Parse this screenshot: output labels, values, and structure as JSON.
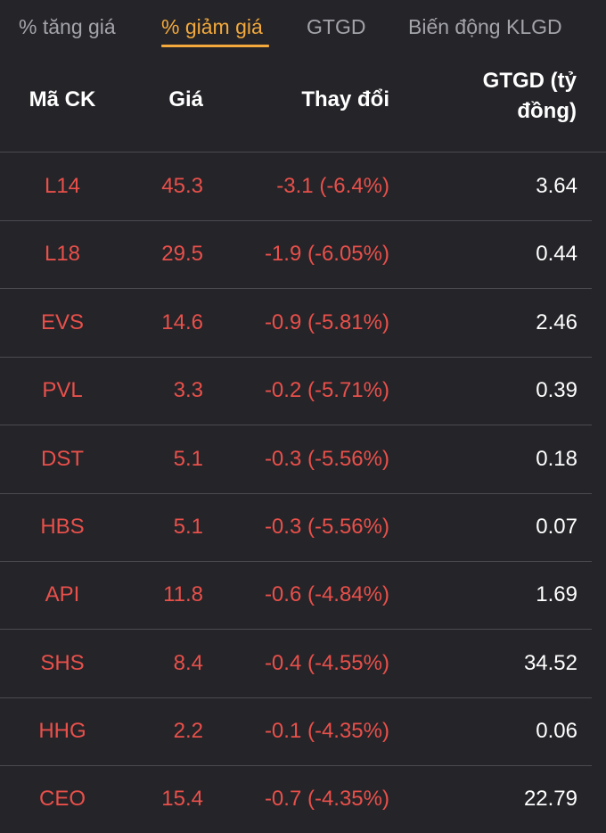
{
  "tabs": [
    {
      "label": "% tăng giá",
      "active": false
    },
    {
      "label": "% giảm giá",
      "active": true
    },
    {
      "label": "GTGD",
      "active": false
    },
    {
      "label": "Biến động KLGD",
      "active": false
    }
  ],
  "colors": {
    "background": "#242429",
    "accent": "#f3a93b",
    "down": "#e9504a",
    "text": "#ffffff",
    "muted": "#a3a3aa",
    "divider": "#4a4a50"
  },
  "table": {
    "headers": {
      "symbol": "Mã CK",
      "price": "Giá",
      "change": "Thay đổi",
      "value_line1": "GTGD (tỷ",
      "value_line2": "đồng)"
    },
    "rows": [
      {
        "symbol": "L14",
        "price": "45.3",
        "change": "-3.1 (-6.4%)",
        "value": "3.64"
      },
      {
        "symbol": "L18",
        "price": "29.5",
        "change": "-1.9 (-6.05%)",
        "value": "0.44"
      },
      {
        "symbol": "EVS",
        "price": "14.6",
        "change": "-0.9 (-5.81%)",
        "value": "2.46"
      },
      {
        "symbol": "PVL",
        "price": "3.3",
        "change": "-0.2 (-5.71%)",
        "value": "0.39"
      },
      {
        "symbol": "DST",
        "price": "5.1",
        "change": "-0.3 (-5.56%)",
        "value": "0.18"
      },
      {
        "symbol": "HBS",
        "price": "5.1",
        "change": "-0.3 (-5.56%)",
        "value": "0.07"
      },
      {
        "symbol": "API",
        "price": "11.8",
        "change": "-0.6 (-4.84%)",
        "value": "1.69"
      },
      {
        "symbol": "SHS",
        "price": "8.4",
        "change": "-0.4 (-4.55%)",
        "value": "34.52"
      },
      {
        "symbol": "HHG",
        "price": "2.2",
        "change": "-0.1 (-4.35%)",
        "value": "0.06"
      },
      {
        "symbol": "CEO",
        "price": "15.4",
        "change": "-0.7 (-4.35%)",
        "value": "22.79"
      }
    ]
  }
}
